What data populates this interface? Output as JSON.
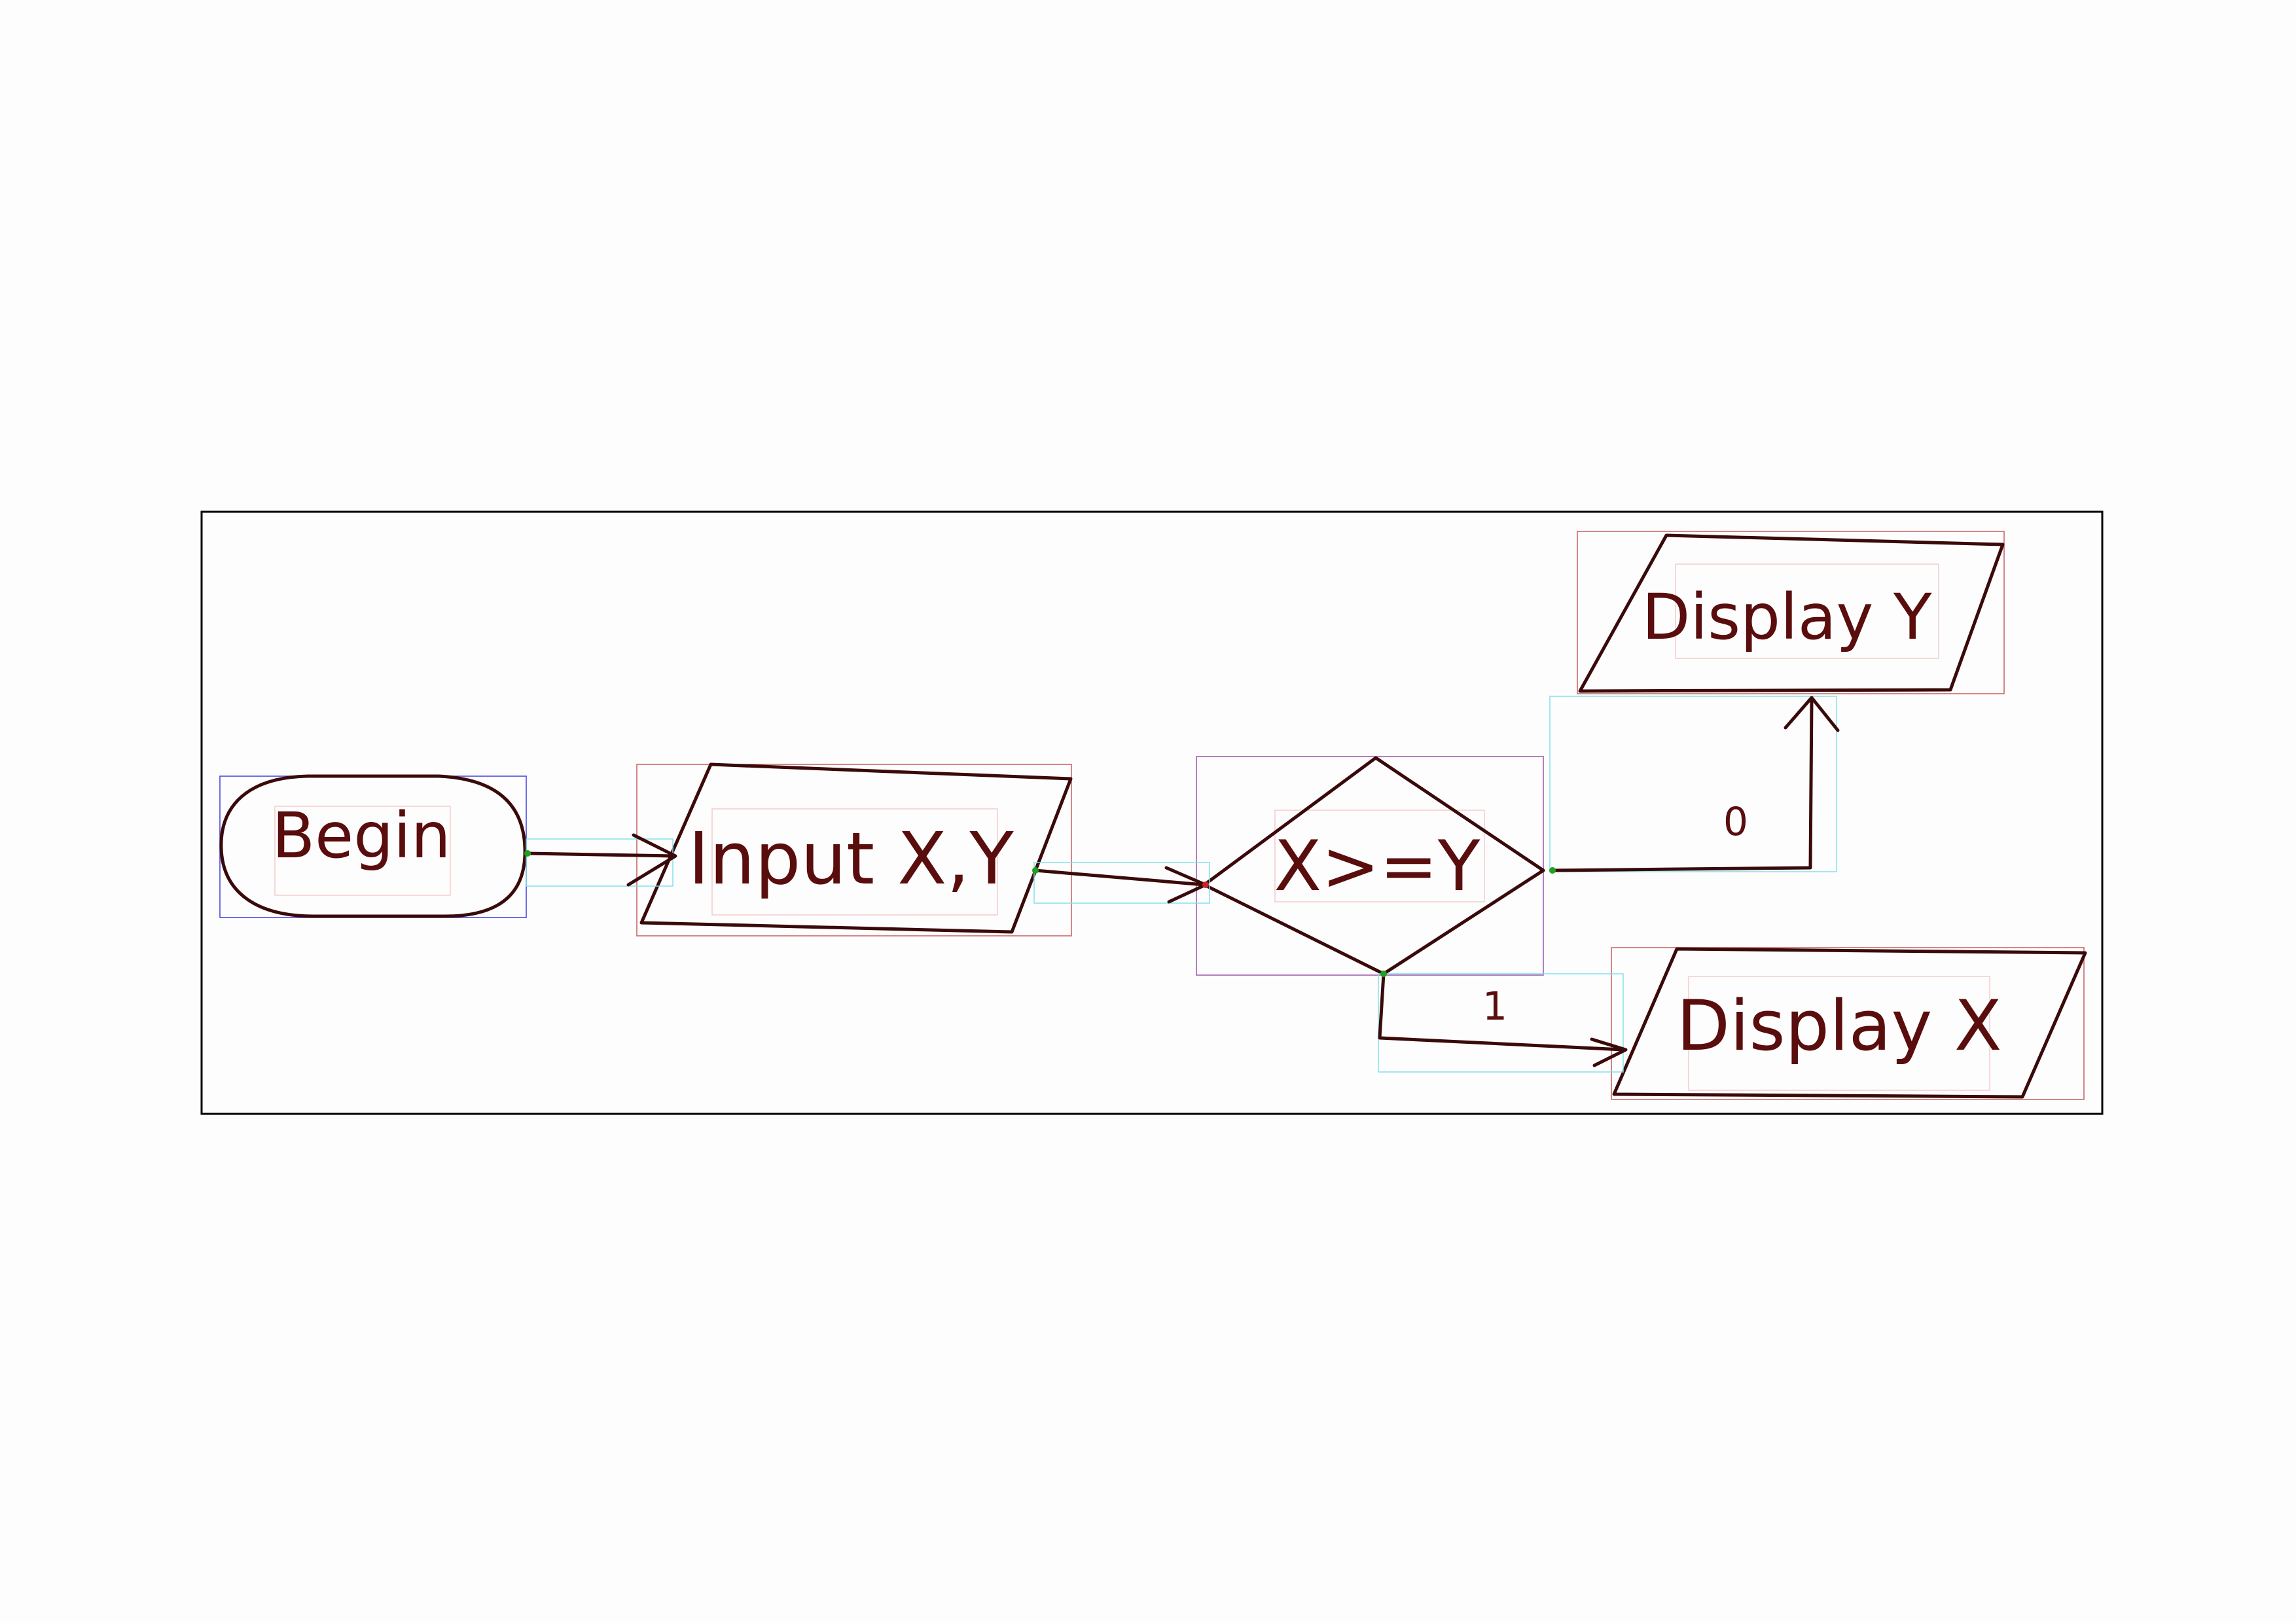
{
  "diagram": {
    "type": "flowchart",
    "nodes": [
      {
        "id": "begin",
        "shape": "terminal",
        "label": "Begin"
      },
      {
        "id": "input",
        "shape": "data",
        "label": "Input X,Y"
      },
      {
        "id": "decision",
        "shape": "decision",
        "label": "X>=Y"
      },
      {
        "id": "display_y",
        "shape": "data",
        "label": "Display Y"
      },
      {
        "id": "display_x",
        "shape": "data",
        "label": "Display X"
      }
    ],
    "edges": [
      {
        "from": "begin",
        "to": "input",
        "label": ""
      },
      {
        "from": "input",
        "to": "decision",
        "label": ""
      },
      {
        "from": "decision",
        "to": "display_y",
        "label": "0"
      },
      {
        "from": "decision",
        "to": "display_x",
        "label": "1"
      }
    ]
  },
  "colors": {
    "ink": "#3a0a0a",
    "frame": "#000000",
    "node_box": "#c0504d",
    "edge_box": "#7ee0ea",
    "start_box": "#4a4ae0",
    "decision_box": "#a060b0"
  }
}
